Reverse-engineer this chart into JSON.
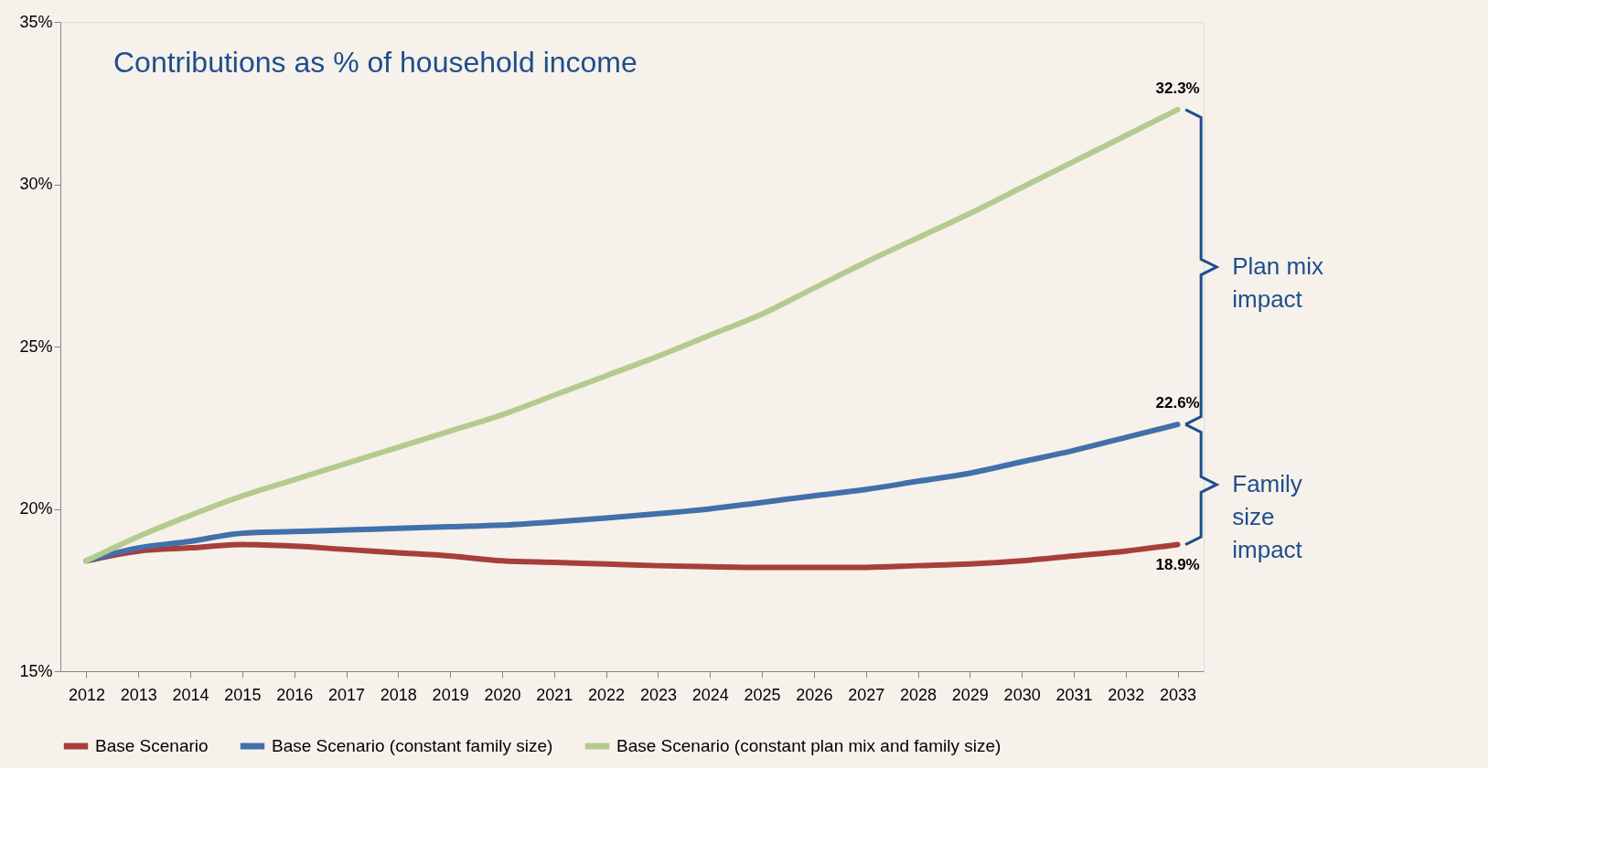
{
  "chart_data": {
    "type": "line",
    "title": "Contributions as % of household income",
    "categories": [
      "2012",
      "2013",
      "2014",
      "2015",
      "2016",
      "2017",
      "2018",
      "2019",
      "2020",
      "2021",
      "2022",
      "2023",
      "2024",
      "2025",
      "2026",
      "2027",
      "2028",
      "2029",
      "2030",
      "2031",
      "2032",
      "2033"
    ],
    "series": [
      {
        "name": "Base Scenario",
        "color": "#a63f3c",
        "values": [
          18.4,
          18.7,
          18.8,
          18.9,
          18.85,
          18.75,
          18.65,
          18.55,
          18.4,
          18.35,
          18.3,
          18.25,
          18.22,
          18.2,
          18.2,
          18.2,
          18.25,
          18.3,
          18.4,
          18.55,
          18.7,
          18.9
        ],
        "value_labels": [
          null,
          null,
          null,
          null,
          null,
          null,
          null,
          null,
          null,
          null,
          null,
          null,
          null,
          null,
          null,
          null,
          null,
          null,
          null,
          null,
          null,
          "18.9%"
        ]
      },
      {
        "name": "Base Scenario (constant family size)",
        "color": "#4170aa",
        "values": [
          18.4,
          18.8,
          19.0,
          19.25,
          19.3,
          19.35,
          19.4,
          19.45,
          19.5,
          19.6,
          19.72,
          19.85,
          20.0,
          20.2,
          20.4,
          20.6,
          20.85,
          21.1,
          21.45,
          21.8,
          22.2,
          22.6
        ],
        "value_labels": [
          null,
          null,
          null,
          null,
          null,
          null,
          null,
          null,
          null,
          null,
          null,
          null,
          null,
          null,
          null,
          null,
          null,
          null,
          null,
          null,
          null,
          "22.6%"
        ]
      },
      {
        "name": "Base Scenario (constant plan mix and family size)",
        "color": "#b3cb8f",
        "values": [
          18.4,
          19.15,
          19.8,
          20.4,
          20.9,
          21.4,
          21.9,
          22.4,
          22.9,
          23.5,
          24.1,
          24.7,
          25.35,
          26.0,
          26.8,
          27.6,
          28.35,
          29.1,
          29.9,
          30.7,
          31.5,
          32.3
        ],
        "value_labels": [
          null,
          null,
          null,
          null,
          null,
          null,
          null,
          null,
          null,
          null,
          null,
          null,
          null,
          null,
          null,
          null,
          null,
          null,
          null,
          null,
          null,
          "32.3%"
        ]
      }
    ],
    "ylim": [
      15,
      35
    ],
    "yticks": [
      {
        "value": 15,
        "label": "15%"
      },
      {
        "value": 20,
        "label": "20%"
      },
      {
        "value": 25,
        "label": "25%"
      },
      {
        "value": 30,
        "label": "30%"
      },
      {
        "value": 35,
        "label": "35%"
      }
    ],
    "annotations": [
      "Plan mix impact",
      "Family size impact"
    ],
    "grid": false,
    "legend": "bottom",
    "marker": "none",
    "line_style": "solid"
  }
}
